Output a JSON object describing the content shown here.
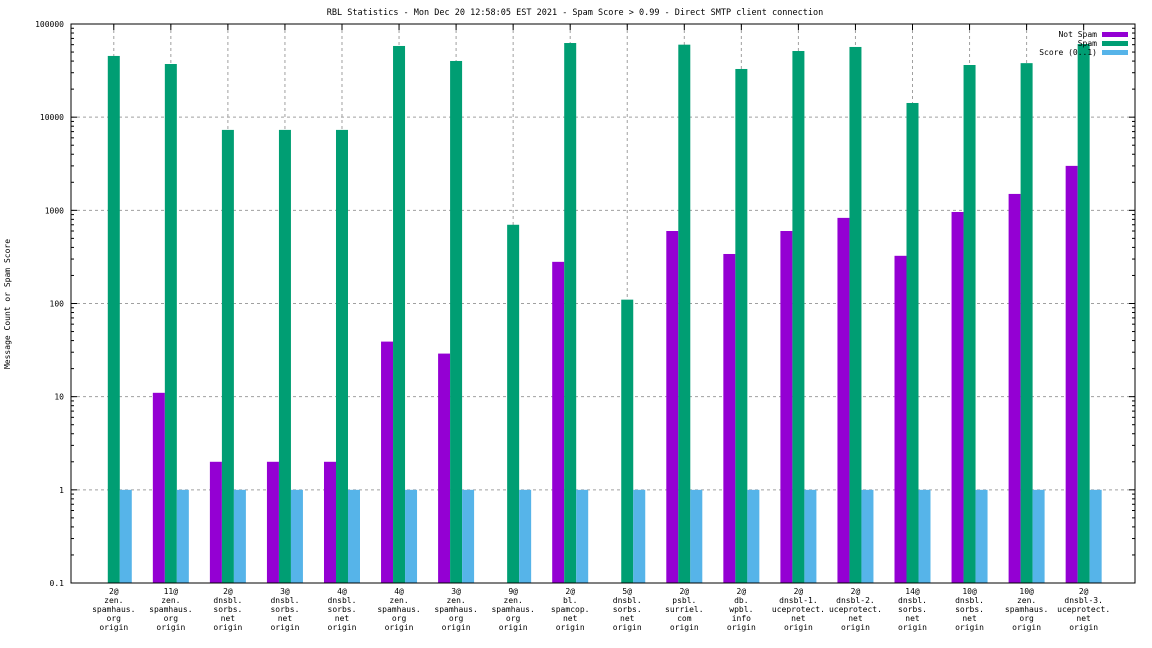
{
  "chart_data": {
    "type": "bar",
    "title": "RBL Statistics - Mon Dec 20 12:58:05 EST 2021 - Spam Score > 0.99 - Direct SMTP client connection",
    "xlabel": "",
    "ylabel": "Message Count or Spam Score",
    "yscale": "log",
    "ylim": [
      0.1,
      100000
    ],
    "yticks": [
      "0.1",
      "1",
      "10",
      "100",
      "1000",
      "10000",
      "100000"
    ],
    "ytick_values": [
      0.1,
      1,
      10,
      100,
      1000,
      10000,
      100000
    ],
    "grid": true,
    "legend_position": "top-right",
    "categories": [
      [
        "2@",
        "zen.",
        "spamhaus.",
        "org",
        "origin"
      ],
      [
        "11@",
        "zen.",
        "spamhaus.",
        "org",
        "origin"
      ],
      [
        "2@",
        "dnsbl.",
        "sorbs.",
        "net",
        "origin"
      ],
      [
        "3@",
        "dnsbl.",
        "sorbs.",
        "net",
        "origin"
      ],
      [
        "4@",
        "dnsbl.",
        "sorbs.",
        "net",
        "origin"
      ],
      [
        "4@",
        "zen.",
        "spamhaus.",
        "org",
        "origin"
      ],
      [
        "3@",
        "zen.",
        "spamhaus.",
        "org",
        "origin"
      ],
      [
        "9@",
        "zen.",
        "spamhaus.",
        "org",
        "origin"
      ],
      [
        "2@",
        "bl.",
        "spamcop.",
        "net",
        "origin"
      ],
      [
        "5@",
        "dnsbl.",
        "sorbs.",
        "net",
        "origin"
      ],
      [
        "2@",
        "psbl.",
        "surriel.",
        "com",
        "origin"
      ],
      [
        "2@",
        "db.",
        "wpbl.",
        "info",
        "origin"
      ],
      [
        "2@",
        "dnsbl-1.",
        "uceprotect.",
        "net",
        "origin"
      ],
      [
        "2@",
        "dnsbl-2.",
        "uceprotect.",
        "net",
        "origin"
      ],
      [
        "14@",
        "dnsbl.",
        "sorbs.",
        "net",
        "origin"
      ],
      [
        "10@",
        "dnsbl.",
        "sorbs.",
        "net",
        "origin"
      ],
      [
        "10@",
        "zen.",
        "spamhaus.",
        "org",
        "origin"
      ],
      [
        "2@",
        "dnsbl-3.",
        "uceprotect.",
        "net",
        "origin"
      ]
    ],
    "series": [
      {
        "name": "Not Spam",
        "color": "#9400d3",
        "values": [
          0,
          11,
          2,
          2,
          2,
          39,
          29,
          0,
          280,
          0,
          600,
          340,
          600,
          830,
          325,
          960,
          1500,
          3000
        ]
      },
      {
        "name": "Spam",
        "color": "#009e73",
        "values": [
          45400,
          37200,
          7300,
          7300,
          7300,
          58100,
          40100,
          700,
          62500,
          110,
          60000,
          32900,
          51300,
          56700,
          14200,
          36300,
          38000,
          61000
        ]
      },
      {
        "name": "Score (0..1)",
        "color": "#56b4e9",
        "values": [
          1,
          1,
          1,
          1,
          1,
          1,
          1,
          1,
          1,
          1,
          1,
          1,
          1,
          1,
          1,
          1,
          1,
          1
        ]
      }
    ]
  }
}
